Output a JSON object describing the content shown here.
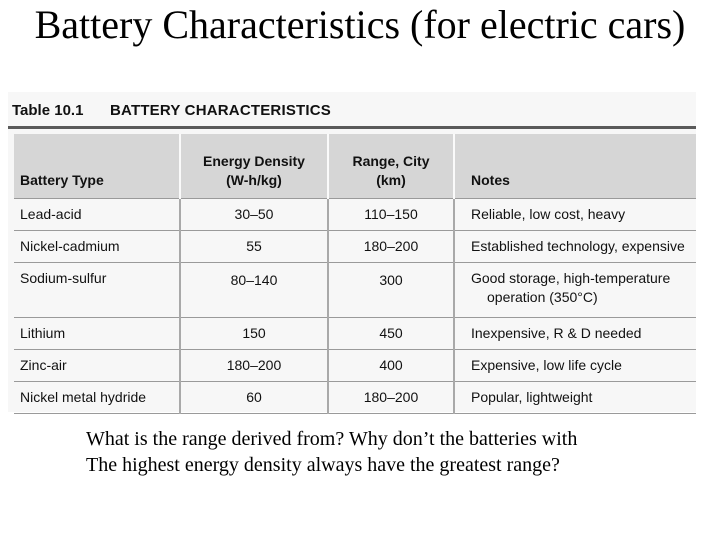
{
  "slide": {
    "title": "Battery Characteristics (for electric cars)"
  },
  "figure": {
    "number": "Table 10.1",
    "caption": "BATTERY CHARACTERISTICS"
  },
  "table": {
    "headers": {
      "type": "Battery Type",
      "energy_line1": "Energy Density",
      "energy_line2": "(W-h/kg)",
      "range_line1": "Range, City",
      "range_line2": "(km)",
      "notes": "Notes"
    },
    "rows": [
      {
        "type": "Lead-acid",
        "energy": "30–50",
        "range": "110–150",
        "notes": "Reliable, low cost, heavy"
      },
      {
        "type": "Nickel-cadmium",
        "energy": "55",
        "range": "180–200",
        "notes": "Established technology, expensive"
      },
      {
        "type": "Sodium-sulfur",
        "energy": "80–140",
        "range": "300",
        "notes": "Good storage, high-temperature",
        "notes_line2": "operation (350°C)"
      },
      {
        "type": "Lithium",
        "energy": "150",
        "range": "450",
        "notes": "Inexpensive, R & D needed"
      },
      {
        "type": "Zinc-air",
        "energy": "180–200",
        "range": "400",
        "notes": "Expensive, low life cycle"
      },
      {
        "type": "Nickel metal hydride",
        "energy": "60",
        "range": "180–200",
        "notes": "Popular, lightweight"
      }
    ]
  },
  "question": {
    "line1": "What is the range derived from?  Why don’t the batteries with",
    "line2": "The highest energy density always have the greatest range?"
  }
}
